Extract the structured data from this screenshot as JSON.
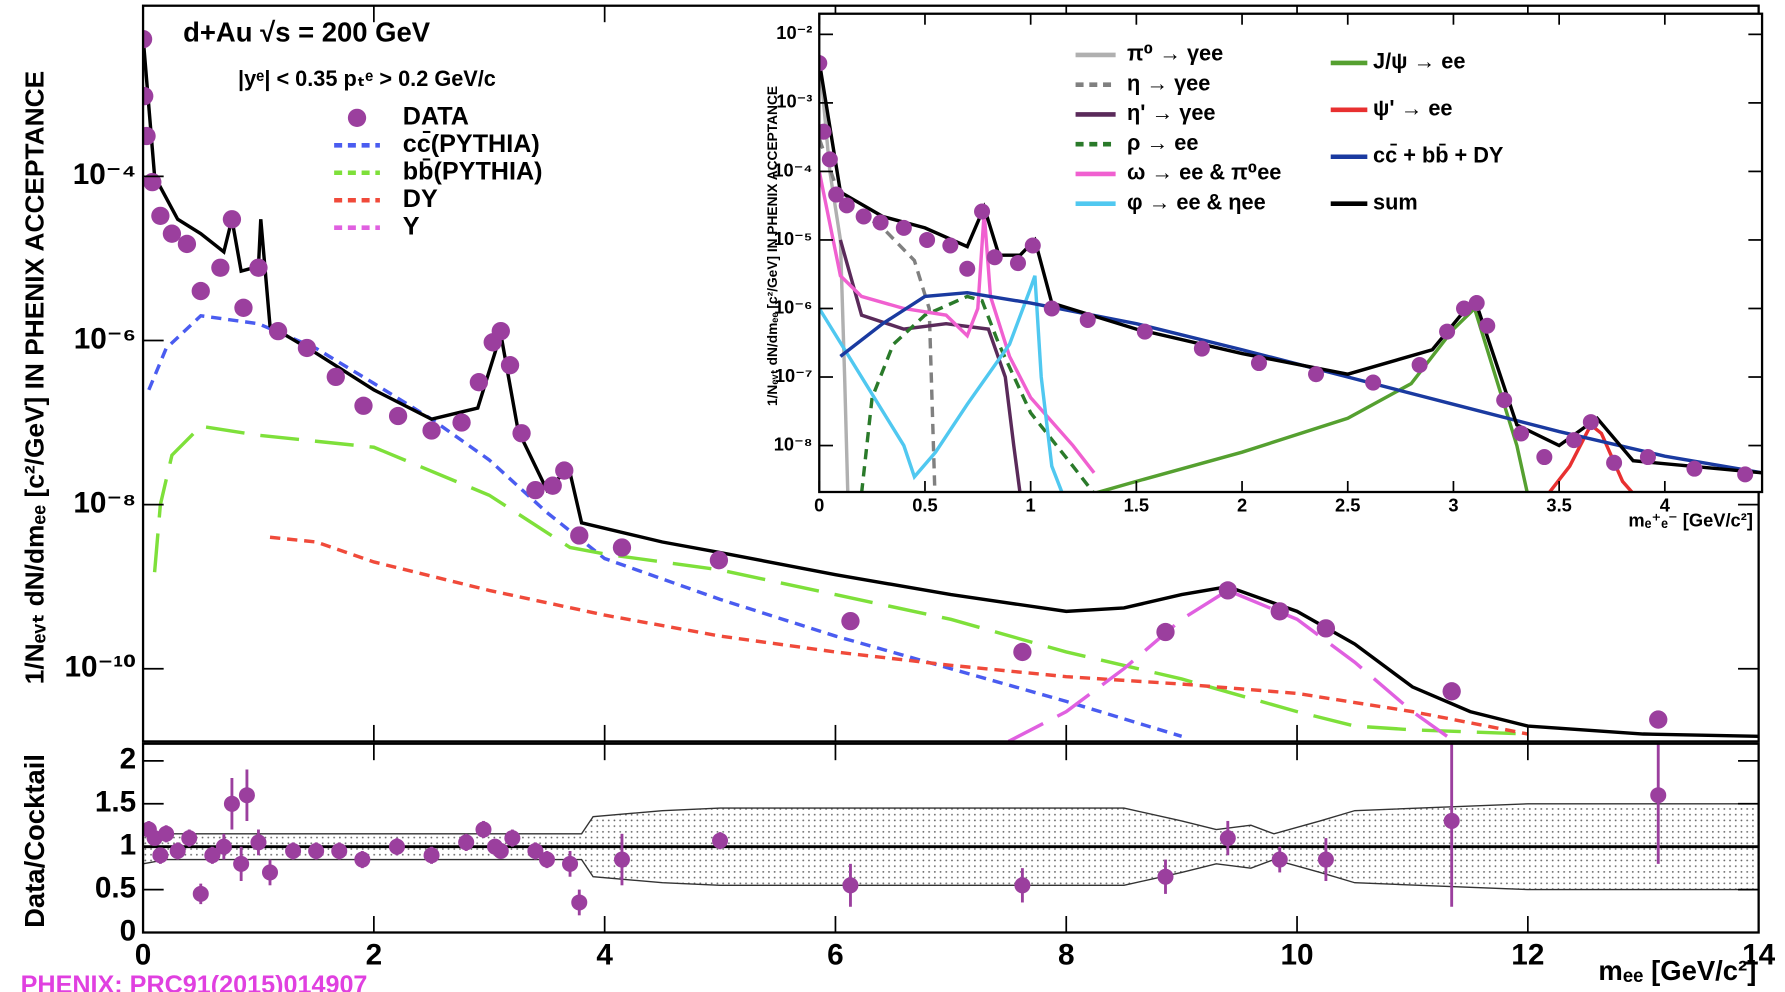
{
  "chart_data": [
    {
      "type": "line",
      "annotations": [
        "d+Au   √s = 200 GeV",
        "|yᵉ| < 0.35   pₜᵉ > 0.2 GeV/c"
      ],
      "ylabel": "1/Nₑᵥₜ dN/dmₑₑ [c²/GeV] IN PHENIX ACCEPTANCE",
      "xlim": [
        0,
        14
      ],
      "ylim": [
        1.3e-11,
        0.012
      ],
      "log_y": true,
      "yticks": [
        {
          "value": 1e-10,
          "label": "10⁻¹⁰"
        },
        {
          "value": 1e-08,
          "label": "10⁻⁸"
        },
        {
          "value": 1e-06,
          "label": "10⁻⁶"
        },
        {
          "value": 0.0001,
          "label": "10⁻⁴"
        }
      ],
      "series": [
        {
          "name": "DATA",
          "color": "#9b3f9e",
          "marker": true,
          "x": [
            0,
            0.01,
            0.03,
            0.08,
            0.15,
            0.25,
            0.38,
            0.5,
            0.67,
            0.77,
            0.87,
            1.0,
            1.17,
            1.42,
            1.67,
            1.91,
            2.21,
            2.5,
            2.76,
            2.91,
            3.03,
            3.1,
            3.18,
            3.28,
            3.4,
            3.55,
            3.65,
            3.78,
            4.15,
            4.99,
            6.13,
            7.62,
            8.86,
            9.4,
            9.85,
            10.25,
            11.34,
            13.13
          ],
          "values": [
            0.0047,
            0.00095,
            0.00031,
            8.5e-05,
            3.3e-05,
            2e-05,
            1.5e-05,
            4e-06,
            7.7e-06,
            3e-05,
            2.5e-06,
            7.7e-06,
            1.3e-06,
            8.1e-07,
            3.6e-07,
            1.6e-07,
            1.2e-07,
            8e-08,
            1e-07,
            3.1e-07,
            9.5e-07,
            1.3e-06,
            5e-07,
            7.4e-08,
            1.5e-08,
            1.7e-08,
            2.6e-08,
            4.2e-09,
            3e-09,
            2.1e-09,
            3.8e-10,
            1.6e-10,
            2.8e-10,
            9e-10,
            5e-10,
            3.1e-10,
            5.3e-11,
            2.4e-11
          ]
        },
        {
          "name": "cc̄(PYTHIA)",
          "color": "#4a5cf0",
          "dash": "dashed",
          "x": [
            0.05,
            0.2,
            0.5,
            1,
            1.5,
            2,
            2.5,
            3,
            3.5,
            4,
            5,
            6,
            7,
            8,
            9
          ],
          "values": [
            2.5e-07,
            8e-07,
            2e-06,
            1.6e-06,
            8e-07,
            3e-07,
            1.1e-07,
            3.5e-08,
            8e-09,
            2.2e-09,
            7e-10,
            2.5e-10,
            1e-10,
            4e-11,
            1.5e-11
          ]
        },
        {
          "name": "bb̄(PYTHIA)",
          "color": "#7ee03a",
          "dash": "long-dash",
          "x": [
            0.1,
            0.15,
            0.25,
            0.5,
            1,
            2,
            3,
            3.7,
            4,
            5,
            6,
            7,
            8,
            9,
            10,
            10.5,
            11,
            12
          ],
          "values": [
            1.5e-09,
            1e-08,
            4e-08,
            9e-08,
            7e-08,
            5e-08,
            1.3e-08,
            3e-09,
            2.5e-09,
            1.6e-09,
            8e-10,
            4e-10,
            1.6e-10,
            7.5e-11,
            3e-11,
            2e-11,
            1.8e-11,
            1.6e-11
          ]
        },
        {
          "name": "DY",
          "color": "#f04a3a",
          "dash": "dashed",
          "x": [
            1.1,
            1.5,
            2,
            3,
            4,
            5,
            6,
            7,
            8,
            9,
            10,
            11,
            12
          ],
          "values": [
            4e-09,
            3.5e-09,
            2e-09,
            9e-10,
            4.5e-10,
            2.5e-10,
            1.6e-10,
            1.1e-10,
            8e-11,
            6.5e-11,
            5e-11,
            3e-11,
            1.6e-11
          ]
        },
        {
          "name": "Υ",
          "color": "#e060e0",
          "dash": "long-dash",
          "x": [
            7.5,
            8,
            8.5,
            9,
            9.4,
            10,
            10.5,
            11,
            11.3
          ],
          "values": [
            1.3e-11,
            3e-11,
            1e-10,
            4e-10,
            9e-10,
            4e-10,
            1.2e-10,
            3e-11,
            1.5e-11
          ]
        },
        {
          "color": "#000000",
          "x": [
            0,
            0.1,
            0.3,
            0.5,
            0.7,
            0.77,
            0.85,
            1.0,
            1.02,
            1.1,
            1.5,
            2,
            2.5,
            2.9,
            3.1,
            3.25,
            3.5,
            3.69,
            3.8,
            4.5,
            5,
            6,
            7,
            8,
            8.5,
            9,
            9.4,
            10,
            10.5,
            11,
            11.5,
            12,
            13,
            14
          ],
          "values": [
            0.005,
            0.0001,
            3e-05,
            2e-05,
            1.2e-05,
            3e-05,
            7e-06,
            8e-06,
            3e-05,
            1.5e-06,
            7e-07,
            2.5e-07,
            1.1e-07,
            1.5e-07,
            1.2e-06,
            8e-08,
            1.5e-08,
            2.8e-08,
            6e-09,
            3.5e-09,
            2.6e-09,
            1.4e-09,
            8e-10,
            5e-10,
            5.5e-10,
            8e-10,
            1e-09,
            5e-10,
            2e-10,
            6e-11,
            3e-11,
            2e-11,
            1.6e-11,
            1.5e-11
          ]
        }
      ]
    },
    {
      "type": "line",
      "ylabel": "Data/Cocktail",
      "xlabel": "mₑₑ [GeV/c²]",
      "xlim": [
        0,
        14
      ],
      "ylim": [
        0,
        2.2
      ],
      "xticks": [
        0,
        2,
        4,
        6,
        8,
        10,
        12,
        14
      ],
      "yticks": [
        0,
        0.5,
        1,
        1.5,
        2
      ],
      "band": {
        "x": [
          0,
          0.2,
          3.8,
          3.9,
          4.5,
          5,
          8.5,
          9,
          9.3,
          9.6,
          9.8,
          10.2,
          10.5,
          12,
          14
        ],
        "upper": [
          1.2,
          1.15,
          1.15,
          1.35,
          1.42,
          1.45,
          1.45,
          1.3,
          1.2,
          1.25,
          1.15,
          1.3,
          1.42,
          1.5,
          1.5
        ],
        "lower": [
          0.8,
          0.85,
          0.85,
          0.65,
          0.58,
          0.55,
          0.55,
          0.7,
          0.8,
          0.75,
          0.85,
          0.7,
          0.58,
          0.5,
          0.5
        ]
      },
      "series": [
        {
          "color": "#9b3f9e",
          "marker": true,
          "x": [
            0.05,
            0.1,
            0.15,
            0.2,
            0.3,
            0.4,
            0.5,
            0.6,
            0.7,
            0.77,
            0.85,
            0.9,
            1.0,
            1.1,
            1.3,
            1.5,
            1.7,
            1.9,
            2.2,
            2.5,
            2.8,
            2.95,
            3.05,
            3.1,
            3.2,
            3.4,
            3.5,
            3.7,
            3.78,
            4.15,
            5,
            6.13,
            7.62,
            8.86,
            9.4,
            9.85,
            10.25,
            11.34,
            13.13
          ],
          "values": [
            1.2,
            1.1,
            0.9,
            1.15,
            0.95,
            1.1,
            0.45,
            0.9,
            1.0,
            1.5,
            0.8,
            1.6,
            1.05,
            0.7,
            0.95,
            0.95,
            0.95,
            0.85,
            1.0,
            0.9,
            1.05,
            1.2,
            1.0,
            0.95,
            1.1,
            0.95,
            0.85,
            0.8,
            0.35,
            0.85,
            1.07,
            0.55,
            0.55,
            0.65,
            1.1,
            0.85,
            0.85,
            1.3,
            1.6
          ],
          "errors": [
            0.1,
            0.1,
            0.1,
            0.1,
            0.1,
            0.1,
            0.12,
            0.1,
            0.15,
            0.3,
            0.2,
            0.3,
            0.15,
            0.15,
            0.1,
            0.1,
            0.1,
            0.1,
            0.1,
            0.1,
            0.1,
            0.1,
            0.05,
            0.05,
            0.1,
            0.1,
            0.1,
            0.15,
            0.15,
            0.3,
            0.1,
            0.25,
            0.2,
            0.2,
            0.2,
            0.15,
            0.25,
            1.0,
            0.8
          ]
        }
      ]
    },
    {
      "type": "line",
      "xlabel": "mₑ⁺ₑ⁻ [GeV/c²]",
      "ylabel": "1/Nₑᵥₜ dN/dmₑₑ [c²/GeV] IN PHENIX ACCEPTANCE",
      "xlim": [
        0,
        4.46
      ],
      "ylim": [
        2.1e-09,
        0.02
      ],
      "log_y": true,
      "xticks": [
        0,
        0.5,
        1,
        1.5,
        2,
        2.5,
        3,
        3.5,
        4
      ],
      "yticks": [
        {
          "value": 1e-08,
          "label": "10⁻⁸"
        },
        {
          "value": 1e-07,
          "label": "10⁻⁷"
        },
        {
          "value": 1e-06,
          "label": "10⁻⁶"
        },
        {
          "value": 1e-05,
          "label": "10⁻⁵"
        },
        {
          "value": 0.0001,
          "label": "10⁻⁴"
        },
        {
          "value": 0.001,
          "label": "10⁻³"
        },
        {
          "value": 0.01,
          "label": "10⁻²"
        }
      ],
      "series": [
        {
          "name": "π⁰ → γee",
          "color": "#b0b0b0",
          "x": [
            0,
            0.05,
            0.1,
            0.12,
            0.135
          ],
          "values": [
            0.005,
            0.0001,
            1e-05,
            1e-07,
            2e-09
          ]
        },
        {
          "name": "η → γee",
          "color": "#808080",
          "dash": "dashed",
          "x": [
            0,
            0.1,
            0.3,
            0.45,
            0.52,
            0.54,
            0.547
          ],
          "values": [
            0.0003,
            4e-05,
            1.5e-05,
            5e-06,
            1e-06,
            1e-08,
            2e-09
          ]
        },
        {
          "name": "η' → γee",
          "color": "#5a2a5a",
          "x": [
            0.1,
            0.2,
            0.4,
            0.6,
            0.8,
            0.88,
            0.92,
            0.95
          ],
          "values": [
            1e-05,
            8e-07,
            5e-07,
            6e-07,
            5e-07,
            1e-07,
            1e-08,
            2e-09
          ]
        },
        {
          "name": "ρ → ee",
          "color": "#2a7a2a",
          "dash": "dashed",
          "x": [
            0.2,
            0.25,
            0.35,
            0.5,
            0.7,
            0.77,
            0.85,
            1,
            1.2,
            1.3
          ],
          "values": [
            2e-09,
            5e-08,
            3e-07,
            8e-07,
            1.5e-06,
            1.3e-06,
            3e-07,
            3e-08,
            5e-09,
            2e-09
          ]
        },
        {
          "name": "ω → ee & π⁰ee",
          "color": "#f060d0",
          "x": [
            0,
            0.1,
            0.2,
            0.4,
            0.6,
            0.7,
            0.75,
            0.78,
            0.81,
            0.9,
            1,
            1.2,
            1.3
          ],
          "values": [
            0.0001,
            3e-06,
            1.5e-06,
            1e-06,
            8e-07,
            4e-07,
            1e-06,
            2.5e-05,
            1.5e-06,
            2e-07,
            5e-08,
            1e-08,
            4e-09
          ]
        },
        {
          "name": "φ → ee & ηee",
          "color": "#50c8f0",
          "x": [
            0,
            0.2,
            0.4,
            0.45,
            0.55,
            0.7,
            0.9,
            1.0,
            1.02,
            1.05,
            1.1,
            1.15
          ],
          "values": [
            1e-06,
            1e-07,
            1e-08,
            3.5e-09,
            8e-09,
            4e-08,
            3e-07,
            2e-06,
            3e-06,
            1e-07,
            5e-09,
            2e-09
          ]
        },
        {
          "name": "J/ψ → ee",
          "color": "#55a030",
          "x": [
            1.3,
            1.5,
            2,
            2.5,
            2.8,
            3.0,
            3.1,
            3.2,
            3.3,
            3.35
          ],
          "values": [
            2e-09,
            3e-09,
            8e-09,
            2.5e-08,
            8e-08,
            5e-07,
            1e-06,
            1e-07,
            1e-08,
            2e-09
          ]
        },
        {
          "name": "ψ' → ee",
          "color": "#e83030",
          "x": [
            3.45,
            3.55,
            3.65,
            3.7,
            3.8,
            3.85
          ],
          "values": [
            2e-09,
            5e-09,
            2e-08,
            1.5e-08,
            3e-09,
            2e-09
          ]
        },
        {
          "name": "cc̄ + bb̄ + DY",
          "color": "#1a3aa0",
          "x": [
            0.1,
            0.3,
            0.5,
            0.7,
            1,
            1.5,
            2,
            2.5,
            3,
            3.5,
            4,
            4.46
          ],
          "values": [
            2e-07,
            6e-07,
            1.5e-06,
            1.7e-06,
            1.2e-06,
            6e-07,
            2.5e-07,
            1e-07,
            4e-08,
            1.6e-08,
            7e-09,
            4e-09
          ]
        },
        {
          "name": "sum",
          "color": "#000000",
          "x": [
            0,
            0.1,
            0.3,
            0.5,
            0.7,
            0.78,
            0.85,
            0.95,
            1.02,
            1.1,
            1.5,
            2,
            2.5,
            2.9,
            3.1,
            3.3,
            3.5,
            3.68,
            3.85,
            4.46
          ],
          "values": [
            0.004,
            5e-05,
            2.2e-05,
            1.5e-05,
            8e-06,
            3e-05,
            6e-06,
            6e-06,
            1e-05,
            1.2e-06,
            5e-07,
            2.2e-07,
            1.1e-07,
            2.5e-07,
            1.4e-06,
            2e-08,
            1e-08,
            2.5e-08,
            6e-09,
            4e-09
          ]
        },
        {
          "color": "#9b3f9e",
          "marker": true,
          "x": [
            0,
            0.02,
            0.05,
            0.08,
            0.13,
            0.21,
            0.29,
            0.4,
            0.51,
            0.62,
            0.7,
            0.77,
            0.83,
            0.94,
            1.01,
            1.1,
            1.27,
            1.54,
            1.81,
            2.08,
            2.35,
            2.62,
            2.84,
            2.97,
            3.05,
            3.11,
            3.16,
            3.24,
            3.32,
            3.43,
            3.57,
            3.65,
            3.76,
            3.92,
            4.14,
            4.38
          ],
          "values": [
            0.0038,
            0.00038,
            0.00015,
            4.6e-05,
            3.2e-05,
            2.2e-05,
            1.8e-05,
            1.5e-05,
            1e-05,
            8.3e-06,
            3.8e-06,
            2.6e-05,
            5.6e-06,
            4.6e-06,
            8.3e-06,
            1e-06,
            6.8e-07,
            4.6e-07,
            2.6e-07,
            1.6e-07,
            1.1e-07,
            8.3e-08,
            1.5e-07,
            4.6e-07,
            1e-06,
            1.2e-06,
            5.6e-07,
            4.6e-08,
            1.5e-08,
            6.8e-09,
            1.2e-08,
            2.2e-08,
            5.6e-09,
            6.8e-09,
            4.6e-09,
            3.8e-09
          ]
        }
      ]
    }
  ],
  "source": "PHENIX: PRC91(2015)014907"
}
